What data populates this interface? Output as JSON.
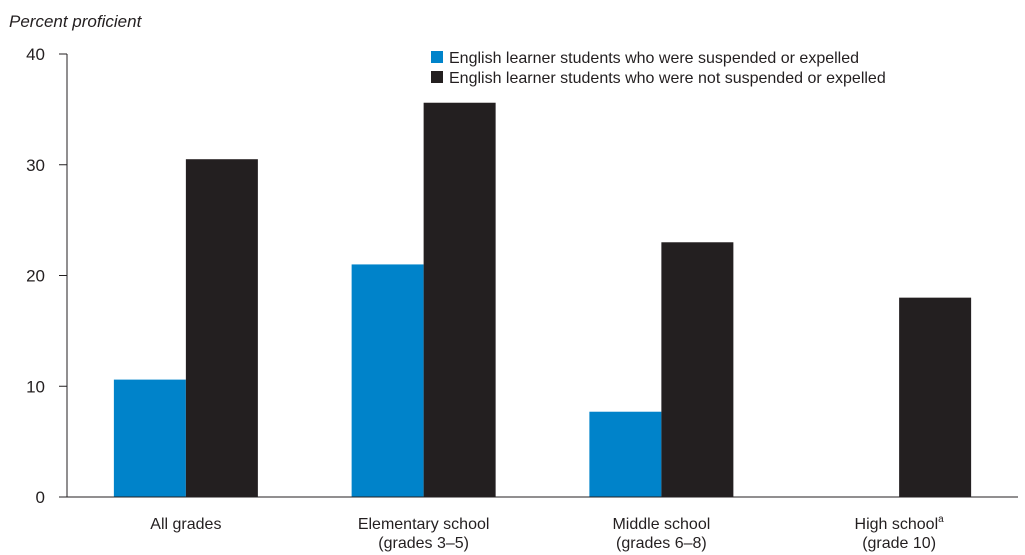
{
  "chart_data": {
    "type": "bar",
    "ylabel": "Percent proficient",
    "xlabel": "",
    "ylim": [
      0,
      40
    ],
    "yticks": [
      0,
      10,
      20,
      30,
      40
    ],
    "categories": [
      {
        "line1": "All grades",
        "line2": ""
      },
      {
        "line1": "Elementary school",
        "line2": "(grades 3–5)"
      },
      {
        "line1": "Middle school",
        "line2": "(grades 6–8)"
      },
      {
        "line1": "High school",
        "sup": "a",
        "line2": "(grade 10)"
      }
    ],
    "series": [
      {
        "name": "English learner students who were suspended or expelled",
        "color": "#0083ca",
        "values": [
          10.6,
          21.0,
          7.7,
          null
        ]
      },
      {
        "name": "English learner students who were not suspended or expelled",
        "color": "#231f20",
        "values": [
          30.5,
          35.6,
          23.0,
          18.0
        ]
      }
    ],
    "grid": false,
    "legend_position": "top-right"
  }
}
